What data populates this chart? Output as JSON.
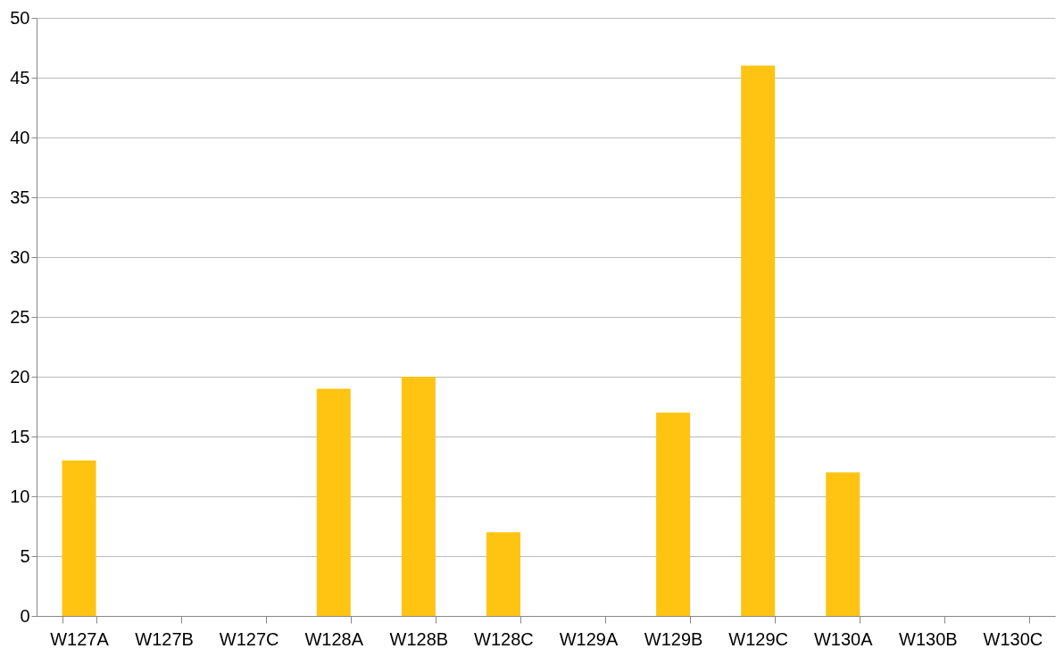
{
  "chart_data": {
    "type": "bar",
    "categories": [
      "W127A",
      "W127B",
      "W127C",
      "W128A",
      "W128B",
      "W128C",
      "W129A",
      "W129B",
      "W129C",
      "W130A",
      "W130B",
      "W130C"
    ],
    "values": [
      13,
      0,
      0,
      19,
      20,
      7,
      0,
      17,
      46,
      12,
      0,
      0
    ],
    "color": "#ffc312",
    "ylim": [
      0,
      50
    ],
    "yticks": [
      0,
      5,
      10,
      15,
      20,
      25,
      30,
      35,
      40,
      45,
      50
    ],
    "grid": "y"
  }
}
